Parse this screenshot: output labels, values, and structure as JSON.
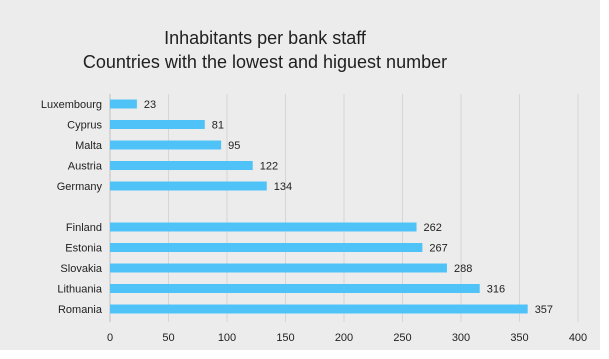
{
  "chart_data": {
    "type": "bar",
    "orientation": "horizontal",
    "title_lines": [
      "Inhabitants per bank staff",
      "Countries with the lowest and higuest number"
    ],
    "groups": [
      {
        "categories": [
          "Luxembourg",
          "Cyprus",
          "Malta",
          "Austria",
          "Germany"
        ],
        "values": [
          23,
          81,
          95,
          122,
          134
        ]
      },
      {
        "categories": [
          "Finland",
          "Estonia",
          "Slovakia",
          "Lithuania",
          "Romania"
        ],
        "values": [
          262,
          267,
          288,
          316,
          357
        ]
      }
    ],
    "xlim": [
      0,
      400
    ],
    "x_ticks": [
      0,
      50,
      100,
      150,
      200,
      250,
      300,
      350,
      400
    ],
    "grid": true,
    "legend": "none",
    "bar_color": "#4fc3f7",
    "background_color": "#ececec"
  }
}
